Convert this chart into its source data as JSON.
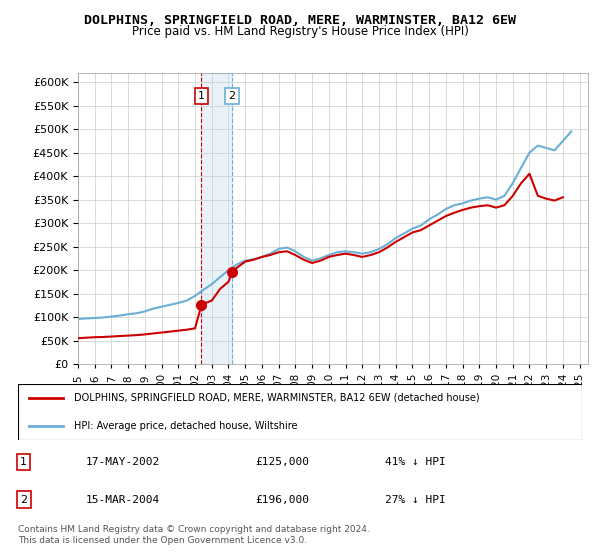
{
  "title": "DOLPHINS, SPRINGFIELD ROAD, MERE, WARMINSTER, BA12 6EW",
  "subtitle": "Price paid vs. HM Land Registry's House Price Index (HPI)",
  "legend_line1": "DOLPHINS, SPRINGFIELD ROAD, MERE, WARMINSTER, BA12 6EW (detached house)",
  "legend_line2": "HPI: Average price, detached house, Wiltshire",
  "footer": "Contains HM Land Registry data © Crown copyright and database right 2024.\nThis data is licensed under the Open Government Licence v3.0.",
  "transactions": [
    {
      "label": "1",
      "date": "17-MAY-2002",
      "price": 125000,
      "pct": "41%",
      "dir": "↓",
      "year_x": 2002.38
    },
    {
      "label": "2",
      "date": "15-MAR-2004",
      "price": 196000,
      "pct": "27%",
      "dir": "↓",
      "year_x": 2004.21
    }
  ],
  "hpi_color": "#6baed6",
  "price_color": "#cc0000",
  "vline_color_1": "#cc0000",
  "vline_color_2": "#6baed6",
  "hpi_data": {
    "years": [
      1995.0,
      1995.5,
      1996.0,
      1996.5,
      1997.0,
      1997.5,
      1998.0,
      1998.5,
      1999.0,
      1999.5,
      2000.0,
      2000.5,
      2001.0,
      2001.5,
      2002.0,
      2002.5,
      2003.0,
      2003.5,
      2004.0,
      2004.5,
      2005.0,
      2005.5,
      2006.0,
      2006.5,
      2007.0,
      2007.5,
      2008.0,
      2008.5,
      2009.0,
      2009.5,
      2010.0,
      2010.5,
      2011.0,
      2011.5,
      2012.0,
      2012.5,
      2013.0,
      2013.5,
      2014.0,
      2014.5,
      2015.0,
      2015.5,
      2016.0,
      2016.5,
      2017.0,
      2017.5,
      2018.0,
      2018.5,
      2019.0,
      2019.5,
      2020.0,
      2020.5,
      2021.0,
      2021.5,
      2022.0,
      2022.5,
      2023.0,
      2023.5,
      2024.0,
      2024.5
    ],
    "values": [
      96000,
      97000,
      98000,
      99000,
      101000,
      103000,
      106000,
      108000,
      112000,
      118000,
      122000,
      126000,
      130000,
      135000,
      145000,
      158000,
      170000,
      185000,
      200000,
      212000,
      220000,
      223000,
      228000,
      235000,
      245000,
      248000,
      240000,
      228000,
      220000,
      225000,
      232000,
      238000,
      240000,
      238000,
      235000,
      238000,
      245000,
      255000,
      268000,
      278000,
      288000,
      295000,
      308000,
      318000,
      330000,
      338000,
      342000,
      348000,
      352000,
      355000,
      350000,
      358000,
      385000,
      418000,
      450000,
      465000,
      460000,
      455000,
      475000,
      495000
    ]
  },
  "price_data": {
    "years": [
      1995.0,
      1995.5,
      1996.0,
      1996.5,
      1997.0,
      1997.5,
      1998.0,
      1998.5,
      1999.0,
      1999.5,
      2000.0,
      2000.5,
      2001.0,
      2001.5,
      2002.0,
      2002.38,
      2002.5,
      2003.0,
      2003.5,
      2004.0,
      2004.21,
      2004.5,
      2005.0,
      2005.5,
      2006.0,
      2006.5,
      2007.0,
      2007.5,
      2008.0,
      2008.5,
      2009.0,
      2009.5,
      2010.0,
      2010.5,
      2011.0,
      2011.5,
      2012.0,
      2012.5,
      2013.0,
      2013.5,
      2014.0,
      2014.5,
      2015.0,
      2015.5,
      2016.0,
      2016.5,
      2017.0,
      2017.5,
      2018.0,
      2018.5,
      2019.0,
      2019.5,
      2020.0,
      2020.5,
      2021.0,
      2021.5,
      2022.0,
      2022.5,
      2023.0,
      2023.5,
      2024.0
    ],
    "values": [
      55000,
      56000,
      57000,
      57500,
      58500,
      59500,
      60500,
      61500,
      63000,
      65000,
      67000,
      69000,
      71000,
      73000,
      76000,
      125000,
      128000,
      135000,
      160000,
      175000,
      196000,
      205000,
      218000,
      222000,
      228000,
      232000,
      238000,
      240000,
      232000,
      222000,
      215000,
      220000,
      228000,
      232000,
      235000,
      232000,
      228000,
      232000,
      238000,
      248000,
      260000,
      270000,
      280000,
      285000,
      295000,
      305000,
      315000,
      322000,
      328000,
      333000,
      336000,
      338000,
      333000,
      338000,
      358000,
      385000,
      405000,
      358000,
      352000,
      348000,
      355000
    ]
  },
  "ylim": [
    0,
    620000
  ],
  "yticks": [
    0,
    50000,
    100000,
    150000,
    200000,
    250000,
    300000,
    350000,
    400000,
    450000,
    500000,
    550000,
    600000
  ],
  "xlim": [
    1995,
    2025.5
  ],
  "xticks": [
    1995,
    1996,
    1997,
    1998,
    1999,
    2000,
    2001,
    2002,
    2003,
    2004,
    2005,
    2006,
    2007,
    2008,
    2009,
    2010,
    2011,
    2012,
    2013,
    2014,
    2015,
    2016,
    2017,
    2018,
    2019,
    2020,
    2021,
    2022,
    2023,
    2024,
    2025
  ],
  "background_color": "#ffffff",
  "grid_color": "#cccccc"
}
